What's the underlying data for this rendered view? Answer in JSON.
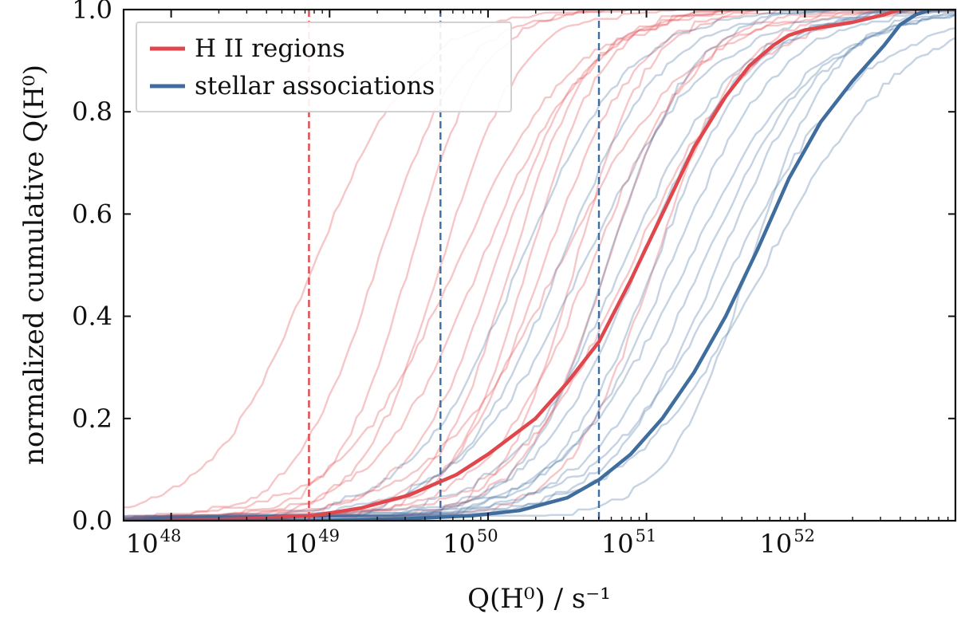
{
  "chart_data": {
    "type": "line",
    "xscale": "log",
    "xlim_log10": [
      47.7,
      52.95
    ],
    "ylim": [
      0,
      1
    ],
    "grid": false,
    "legend_position": "top-left",
    "xlabel": "Q(H⁰) / s⁻¹",
    "ylabel": "normalized cumulative Q(H⁰)",
    "xticks": [
      {
        "value_log10": 48,
        "base": "10",
        "exp": "48"
      },
      {
        "value_log10": 49,
        "base": "10",
        "exp": "49"
      },
      {
        "value_log10": 50,
        "base": "10",
        "exp": "50"
      },
      {
        "value_log10": 51,
        "base": "10",
        "exp": "51"
      },
      {
        "value_log10": 52,
        "base": "10",
        "exp": "52"
      }
    ],
    "yticks": [
      {
        "value": 0.0,
        "label": "0.0"
      },
      {
        "value": 0.2,
        "label": "0.2"
      },
      {
        "value": 0.4,
        "label": "0.4"
      },
      {
        "value": 0.6,
        "label": "0.6"
      },
      {
        "value": 0.8,
        "label": "0.8"
      },
      {
        "value": 1.0,
        "label": "1.0"
      }
    ],
    "colors": {
      "hii": "#e0474c",
      "assoc": "#3f6d9e"
    },
    "legend": [
      {
        "name": "H II regions",
        "color": "#e0474c"
      },
      {
        "name": "stellar associations",
        "color": "#3f6d9e"
      }
    ],
    "vlines": [
      {
        "x_log10": 48.87,
        "color": "#e0474c",
        "series": "H II regions"
      },
      {
        "x_log10": 49.7,
        "color": "#3f6d9e",
        "series": "stellar associations"
      },
      {
        "x_log10": 50.7,
        "color": "#3f6d9e",
        "series": "stellar associations"
      }
    ],
    "series": [
      {
        "name": "H II regions",
        "kind": "combined",
        "x_log10": [
          47.9,
          48.5,
          48.9,
          49.2,
          49.5,
          49.8,
          50.0,
          50.3,
          50.5,
          50.7,
          50.9,
          51.1,
          51.3,
          51.5,
          51.65,
          51.8,
          51.9,
          52.0,
          52.1,
          52.3,
          52.5,
          52.6
        ],
        "y": [
          0.0,
          0.004,
          0.01,
          0.025,
          0.05,
          0.09,
          0.13,
          0.2,
          0.27,
          0.35,
          0.47,
          0.6,
          0.73,
          0.83,
          0.89,
          0.93,
          0.95,
          0.96,
          0.965,
          0.975,
          0.99,
          1.0
        ]
      },
      {
        "name": "stellar associations",
        "kind": "combined",
        "x_log10": [
          48.4,
          49.0,
          49.5,
          49.9,
          50.2,
          50.5,
          50.7,
          50.9,
          51.1,
          51.3,
          51.5,
          51.7,
          51.9,
          52.1,
          52.3,
          52.5,
          52.6,
          52.7,
          52.8
        ],
        "y": [
          0.0,
          0.001,
          0.004,
          0.01,
          0.02,
          0.045,
          0.08,
          0.13,
          0.2,
          0.29,
          0.4,
          0.53,
          0.67,
          0.78,
          0.86,
          0.93,
          0.97,
          0.99,
          1.0
        ]
      }
    ],
    "individual_hii_midpoints_log10": [
      48.9,
      49.3,
      49.5,
      49.7,
      49.8,
      49.95,
      50.05,
      50.15,
      50.25,
      50.35,
      50.45,
      50.55,
      50.65,
      50.75,
      50.9,
      51.05
    ],
    "individual_assoc_midpoints_log10": [
      50.2,
      50.45,
      50.6,
      50.75,
      50.85,
      50.95,
      51.05,
      51.15,
      51.25,
      51.35,
      51.45,
      51.55,
      51.65,
      51.75
    ]
  }
}
